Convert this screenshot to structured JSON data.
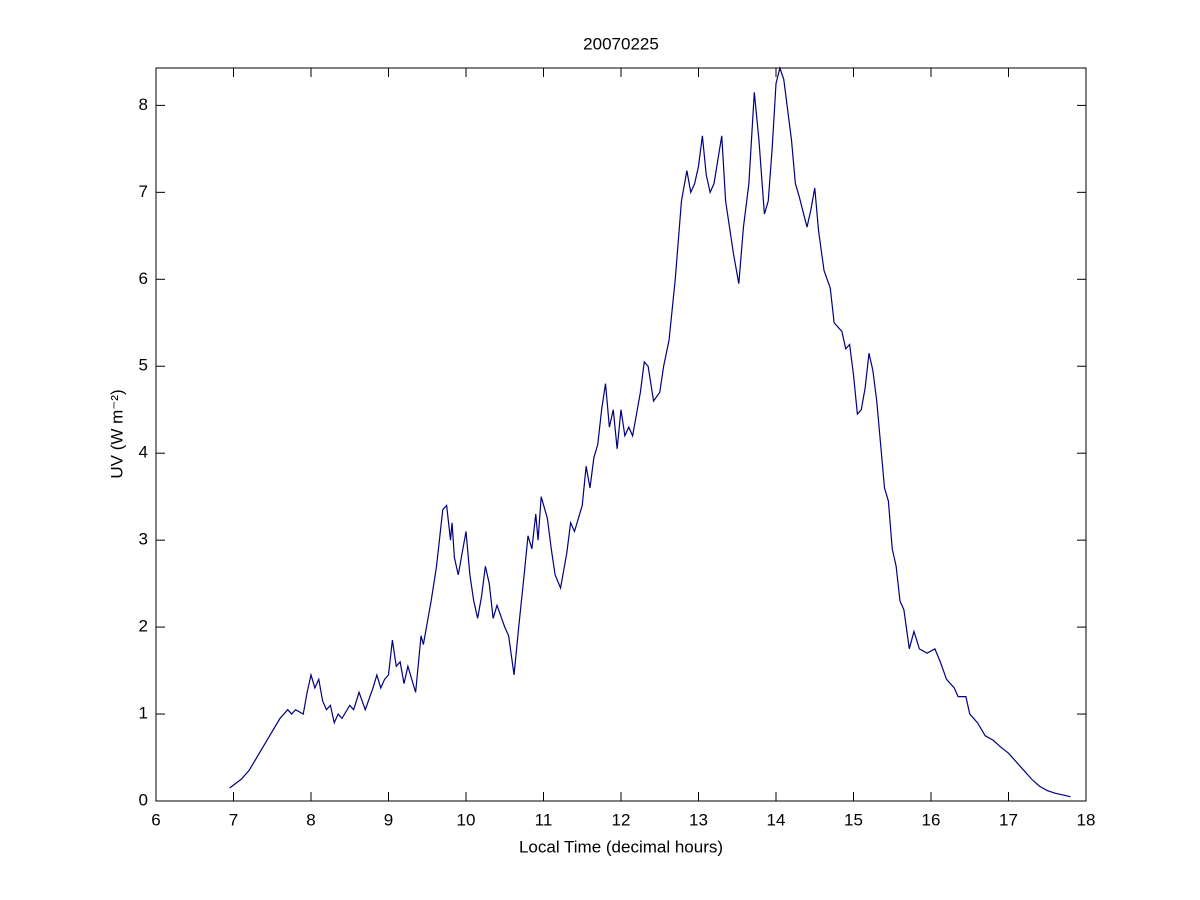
{
  "chart_data": {
    "type": "line",
    "title": "20070225",
    "x_label": "Local Time (decimal hours)",
    "y_label": "UV (W m⁻²)",
    "xlim": [
      6,
      18
    ],
    "xticks": [
      6,
      7,
      8,
      9,
      10,
      11,
      12,
      13,
      14,
      15,
      16,
      17,
      18
    ],
    "ylim": [
      0,
      8.43
    ],
    "yticks": [
      0,
      1,
      2,
      3,
      4,
      5,
      6,
      7,
      8
    ],
    "grid": false,
    "series": [
      {
        "color": "#00007f",
        "x": [
          6.95,
          7.1,
          7.2,
          7.3,
          7.4,
          7.5,
          7.6,
          7.7,
          7.75,
          7.8,
          7.9,
          7.95,
          8.0,
          8.05,
          8.1,
          8.15,
          8.2,
          8.25,
          8.3,
          8.35,
          8.4,
          8.5,
          8.55,
          8.62,
          8.7,
          8.8,
          8.85,
          8.9,
          8.95,
          9.0,
          9.05,
          9.1,
          9.15,
          9.2,
          9.25,
          9.35,
          9.42,
          9.45,
          9.55,
          9.62,
          9.7,
          9.75,
          9.8,
          9.82,
          9.85,
          9.9,
          10.0,
          10.05,
          10.1,
          10.15,
          10.2,
          10.25,
          10.3,
          10.35,
          10.4,
          10.5,
          10.55,
          10.62,
          10.68,
          10.75,
          10.8,
          10.85,
          10.9,
          10.93,
          10.97,
          11.05,
          11.1,
          11.15,
          11.22,
          11.3,
          11.35,
          11.4,
          11.5,
          11.55,
          11.6,
          11.65,
          11.7,
          11.75,
          11.8,
          11.85,
          11.9,
          11.95,
          12.0,
          12.05,
          12.1,
          12.15,
          12.25,
          12.3,
          12.35,
          12.42,
          12.5,
          12.55,
          12.62,
          12.7,
          12.78,
          12.85,
          12.9,
          12.95,
          13.0,
          13.05,
          13.1,
          13.15,
          13.2,
          13.3,
          13.35,
          13.45,
          13.52,
          13.58,
          13.65,
          13.72,
          13.78,
          13.85,
          13.9,
          13.95,
          14.0,
          14.05,
          14.1,
          14.2,
          14.25,
          14.3,
          14.4,
          14.45,
          14.5,
          14.55,
          14.62,
          14.7,
          14.75,
          14.85,
          14.9,
          14.95,
          15.0,
          15.05,
          15.1,
          15.15,
          15.2,
          15.25,
          15.3,
          15.35,
          15.4,
          15.45,
          15.5,
          15.55,
          15.6,
          15.65,
          15.72,
          15.78,
          15.85,
          15.95,
          16.05,
          16.12,
          16.2,
          16.3,
          16.35,
          16.45,
          16.5,
          16.6,
          16.7,
          16.8,
          16.9,
          17.0,
          17.1,
          17.2,
          17.3,
          17.4,
          17.5,
          17.6,
          17.7,
          17.8
        ],
        "values": [
          0.15,
          0.25,
          0.35,
          0.5,
          0.65,
          0.8,
          0.95,
          1.05,
          1.0,
          1.05,
          1.0,
          1.25,
          1.45,
          1.3,
          1.4,
          1.15,
          1.05,
          1.1,
          0.9,
          1.0,
          0.95,
          1.1,
          1.05,
          1.25,
          1.05,
          1.3,
          1.45,
          1.3,
          1.4,
          1.45,
          1.85,
          1.55,
          1.6,
          1.35,
          1.55,
          1.25,
          1.9,
          1.8,
          2.3,
          2.7,
          3.35,
          3.4,
          3.0,
          3.2,
          2.8,
          2.6,
          3.1,
          2.6,
          2.3,
          2.1,
          2.35,
          2.7,
          2.5,
          2.1,
          2.25,
          2.0,
          1.9,
          1.45,
          2.0,
          2.6,
          3.05,
          2.9,
          3.3,
          3.0,
          3.5,
          3.25,
          2.9,
          2.6,
          2.45,
          2.85,
          3.2,
          3.1,
          3.4,
          3.85,
          3.6,
          3.95,
          4.1,
          4.5,
          4.8,
          4.3,
          4.5,
          4.05,
          4.5,
          4.2,
          4.3,
          4.2,
          4.7,
          5.05,
          5.0,
          4.6,
          4.7,
          5.0,
          5.3,
          6.0,
          6.9,
          7.25,
          7.0,
          7.1,
          7.3,
          7.65,
          7.2,
          7.0,
          7.1,
          7.65,
          6.9,
          6.3,
          5.95,
          6.6,
          7.1,
          8.15,
          7.6,
          6.75,
          6.9,
          7.5,
          8.25,
          8.43,
          8.3,
          7.6,
          7.1,
          6.95,
          6.6,
          6.8,
          7.05,
          6.55,
          6.1,
          5.9,
          5.5,
          5.4,
          5.2,
          5.25,
          4.9,
          4.45,
          4.5,
          4.75,
          5.15,
          4.95,
          4.6,
          4.1,
          3.6,
          3.45,
          2.9,
          2.7,
          2.3,
          2.2,
          1.75,
          1.95,
          1.75,
          1.7,
          1.75,
          1.6,
          1.4,
          1.3,
          1.2,
          1.2,
          1.0,
          0.9,
          0.75,
          0.7,
          0.62,
          0.55,
          0.45,
          0.35,
          0.25,
          0.17,
          0.12,
          0.09,
          0.07,
          0.05
        ]
      }
    ]
  }
}
